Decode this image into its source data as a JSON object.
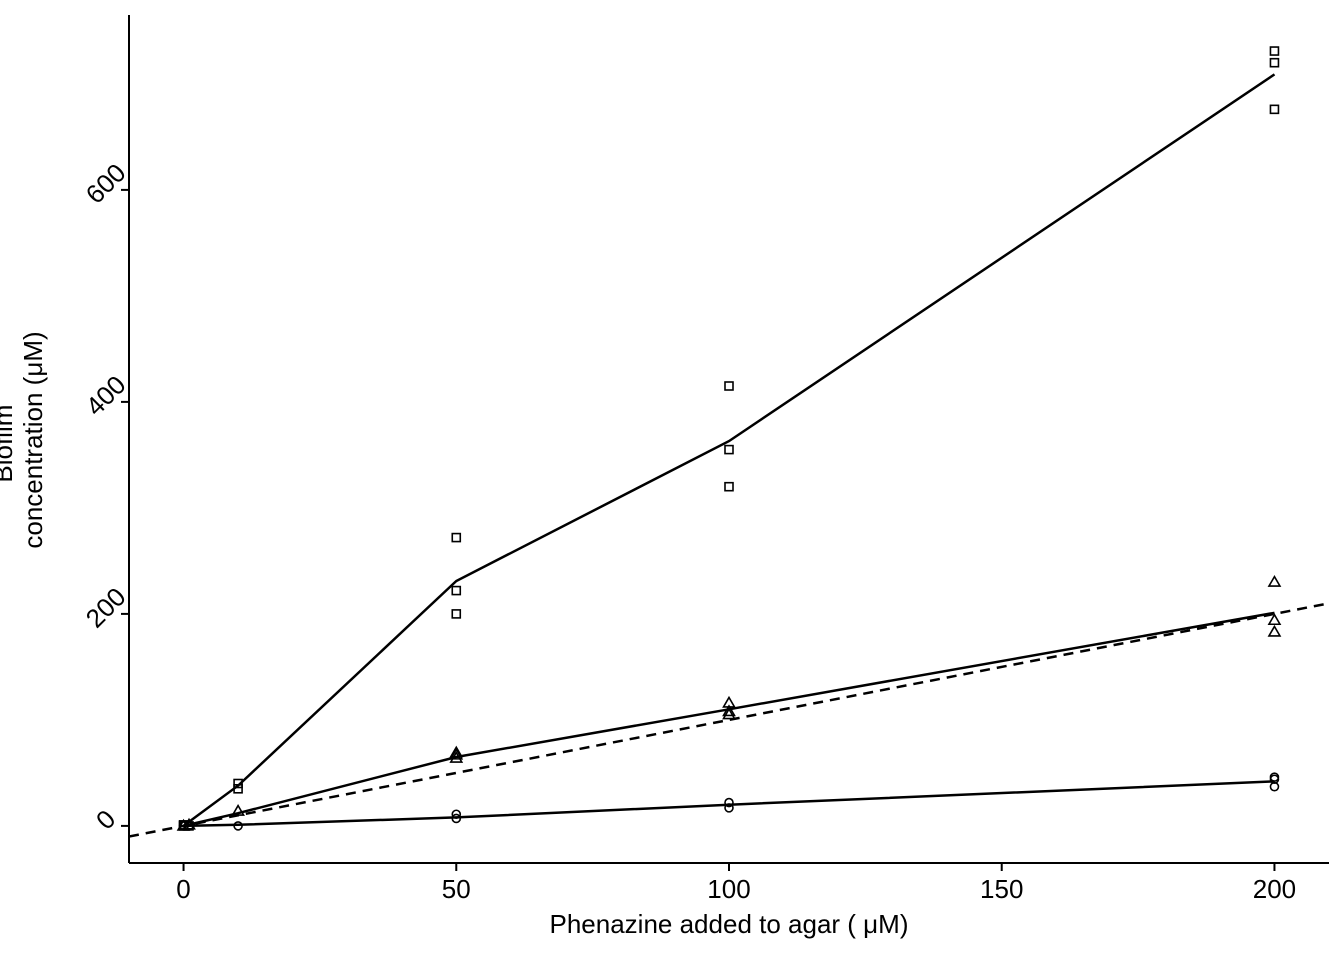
{
  "chart_data": {
    "type": "scatter",
    "xlabel": "Phenazine added to agar ( μM)",
    "ylabel_lines": [
      "Biofilm",
      "concentration (μM)"
    ],
    "xlim": [
      -10,
      210
    ],
    "ylim": [
      -35,
      765
    ],
    "x_ticks": [
      0,
      50,
      100,
      150,
      200
    ],
    "y_ticks": [
      0,
      200,
      400,
      600
    ],
    "x_tick_labels": [
      "0",
      "50",
      "100",
      "150",
      "200"
    ],
    "y_tick_labels": [
      "0",
      "200",
      "400",
      "600"
    ],
    "grid": false,
    "legend": "none",
    "reference_line": {
      "style": "dashed",
      "slope": 1,
      "intercept": 0
    },
    "series": [
      {
        "marker": "square",
        "points": [
          [
            0,
            0
          ],
          [
            0,
            1
          ],
          [
            1,
            0
          ],
          [
            10,
            35
          ],
          [
            10,
            40
          ],
          [
            50,
            200
          ],
          [
            50,
            222
          ],
          [
            50,
            272
          ],
          [
            100,
            320
          ],
          [
            100,
            355
          ],
          [
            100,
            415
          ],
          [
            200,
            676
          ],
          [
            200,
            720
          ],
          [
            200,
            731
          ]
        ],
        "line": [
          [
            0,
            0
          ],
          [
            10,
            38
          ],
          [
            50,
            231
          ],
          [
            100,
            363
          ],
          [
            200,
            709
          ]
        ]
      },
      {
        "marker": "triangle",
        "points": [
          [
            0,
            0
          ],
          [
            1,
            1
          ],
          [
            10,
            14
          ],
          [
            50,
            64
          ],
          [
            50,
            67
          ],
          [
            50,
            69
          ],
          [
            100,
            105
          ],
          [
            100,
            108
          ],
          [
            100,
            116
          ],
          [
            200,
            183
          ],
          [
            200,
            194
          ],
          [
            200,
            230
          ]
        ],
        "line": [
          [
            0,
            0
          ],
          [
            10,
            12
          ],
          [
            50,
            65
          ],
          [
            100,
            110
          ],
          [
            200,
            201
          ]
        ]
      },
      {
        "marker": "circle",
        "points": [
          [
            0,
            0
          ],
          [
            1,
            0
          ],
          [
            10,
            0
          ],
          [
            50,
            7
          ],
          [
            50,
            11
          ],
          [
            100,
            17
          ],
          [
            100,
            22
          ],
          [
            200,
            37
          ],
          [
            200,
            44
          ],
          [
            200,
            46
          ]
        ],
        "line": [
          [
            0,
            0
          ],
          [
            10,
            1
          ],
          [
            50,
            8
          ],
          [
            100,
            20
          ],
          [
            200,
            42
          ]
        ]
      }
    ]
  }
}
